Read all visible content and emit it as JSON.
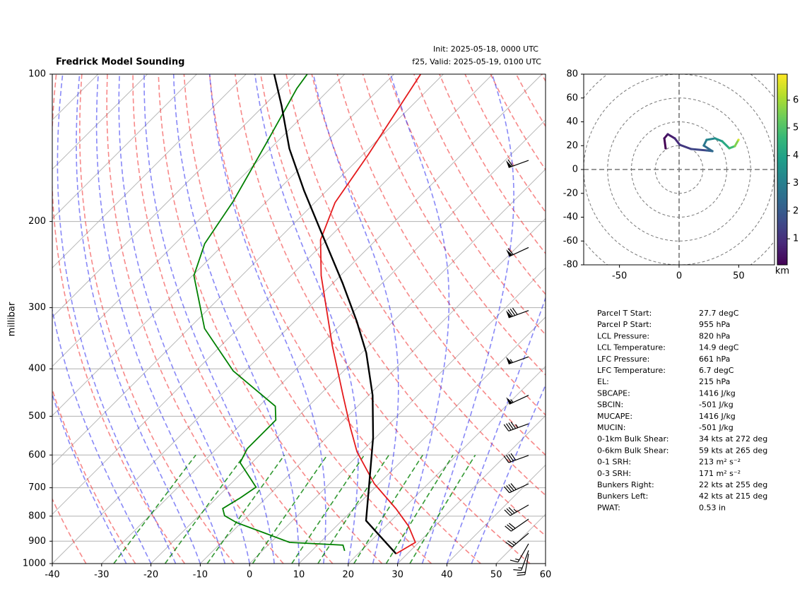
{
  "chart_data": [
    {
      "type": "skewt",
      "title": "Fredrick Model Sounding",
      "init": "Init: 2025-05-18, 0000 UTC",
      "valid": "f25, Valid: 2025-05-19, 0100 UTC",
      "ylabel": "millibar",
      "xlim": [
        -40,
        60
      ],
      "ylim": [
        1000,
        100
      ],
      "log_scale_y": true,
      "grid": true,
      "xticks": [
        -40,
        -30,
        -20,
        -10,
        0,
        10,
        20,
        30,
        40,
        50,
        60
      ],
      "yticks": [
        100,
        200,
        300,
        400,
        500,
        600,
        700,
        800,
        900,
        1000
      ],
      "series": [
        {
          "name": "Temperature",
          "color": "#e41a1c",
          "pressure": [
            955,
            905,
            838,
            772,
            687,
            591,
            526,
            453,
            359,
            258,
            218,
            183,
            146,
            100
          ],
          "temperature": [
            27.7,
            29.3,
            24.6,
            18.5,
            9.1,
            -0.9,
            -7.3,
            -15.2,
            -27.4,
            -43.9,
            -51.3,
            -55.9,
            -58.9,
            -64.6
          ]
        },
        {
          "name": "Dewpoint",
          "color": "#008000",
          "pressure": [
            942,
            917,
            905,
            867,
            825,
            798,
            772,
            734,
            698,
            622,
            582,
            509,
            477,
            404,
            331,
            258,
            222,
            182,
            139,
            107,
            100
          ],
          "temperature": [
            16.7,
            15.2,
            3.8,
            -3.0,
            -10.9,
            -14.8,
            -16.6,
            -15.2,
            -14.2,
            -22.4,
            -23.8,
            -23.8,
            -26.7,
            -42.4,
            -56.8,
            -69.7,
            -74.0,
            -76.8,
            -81.8,
            -86.8,
            -87.6
          ]
        },
        {
          "name": "Parcel",
          "color": "#000000",
          "pressure": [
            955,
            817,
            698,
            553,
            453,
            371,
            320,
            267,
            211,
            173,
            142,
            116,
            100
          ],
          "temperature": [
            27.7,
            14.9,
            8.7,
            -0.5,
            -9.2,
            -19.1,
            -27.4,
            -38.1,
            -52.5,
            -64.6,
            -76.1,
            -86.4,
            -94.3
          ]
        }
      ],
      "barbs": {
        "pressure": [
          150,
          226,
          304,
          378,
          453,
          518,
          601,
          687,
          759,
          811,
          867,
          911,
          940,
          955
        ],
        "speed": [
          60,
          60,
          80,
          55,
          55,
          45,
          40,
          40,
          35,
          30,
          25,
          15,
          15,
          20
        ],
        "direction": [
          250,
          245,
          250,
          250,
          245,
          250,
          250,
          245,
          240,
          235,
          230,
          210,
          200,
          190
        ]
      }
    },
    {
      "type": "hodograph",
      "xlim": [
        -80,
        80
      ],
      "ylim": [
        -80,
        80
      ],
      "xticks": [
        -50,
        0,
        50
      ],
      "yticks": [
        -80,
        -60,
        -40,
        -20,
        0,
        20,
        40,
        60,
        80
      ],
      "u": [
        -11.3,
        -12.4,
        -9.5,
        -3.6,
        0.6,
        10.1,
        23.1,
        27.9,
        20.7,
        23.1,
        30.2,
        36.1,
        42.1,
        46.8,
        49.8
      ],
      "v": [
        17.8,
        26.1,
        29.6,
        26.1,
        20.7,
        17.2,
        16.0,
        15.4,
        20.1,
        24.9,
        26.1,
        23.7,
        17.8,
        19.6,
        24.9
      ],
      "height": [
        0.06,
        0.3,
        0.6,
        0.9,
        1.2,
        1.5,
        2.0,
        2.4,
        2.8,
        3.2,
        3.6,
        4.2,
        4.8,
        5.6,
        6.5
      ],
      "colorbar": {
        "label": "km",
        "lim": [
          0.06,
          6.94
        ],
        "ticks": [
          1,
          2,
          3,
          4,
          5,
          6
        ]
      }
    }
  ],
  "parameters": {
    "rows": [
      [
        "Parcel T Start:",
        "27.7 degC"
      ],
      [
        "Parcel P Start:",
        "955 hPa"
      ],
      [
        "LCL Pressure:",
        "820 hPa"
      ],
      [
        "LCL Temperature:",
        "14.9 degC"
      ],
      [
        "LFC Pressure:",
        "661 hPa"
      ],
      [
        "LFC Temperature:",
        "6.7 degC"
      ],
      [
        "EL:",
        "215 hPa"
      ],
      [
        "SBCAPE:",
        "1416 J/kg"
      ],
      [
        "SBCIN:",
        "-501 J/kg"
      ],
      [
        "MUCAPE:",
        "1416 J/kg"
      ],
      [
        "MUCIN:",
        "-501 J/kg"
      ],
      [
        "0-1km Bulk Shear:",
        "34 kts at 272 deg"
      ],
      [
        "0-6km Bulk Shear:",
        "59 kts at 265 deg"
      ],
      [
        "0-1 SRH:",
        "213 m² s⁻²"
      ],
      [
        "0-3 SRH:",
        "171 m² s⁻²"
      ],
      [
        "Bunkers Right:",
        "22 kts at 255 deg"
      ],
      [
        "Bunkers Left:",
        "42 kts at 215 deg"
      ],
      [
        "PWAT:",
        "0.53 in"
      ]
    ]
  }
}
